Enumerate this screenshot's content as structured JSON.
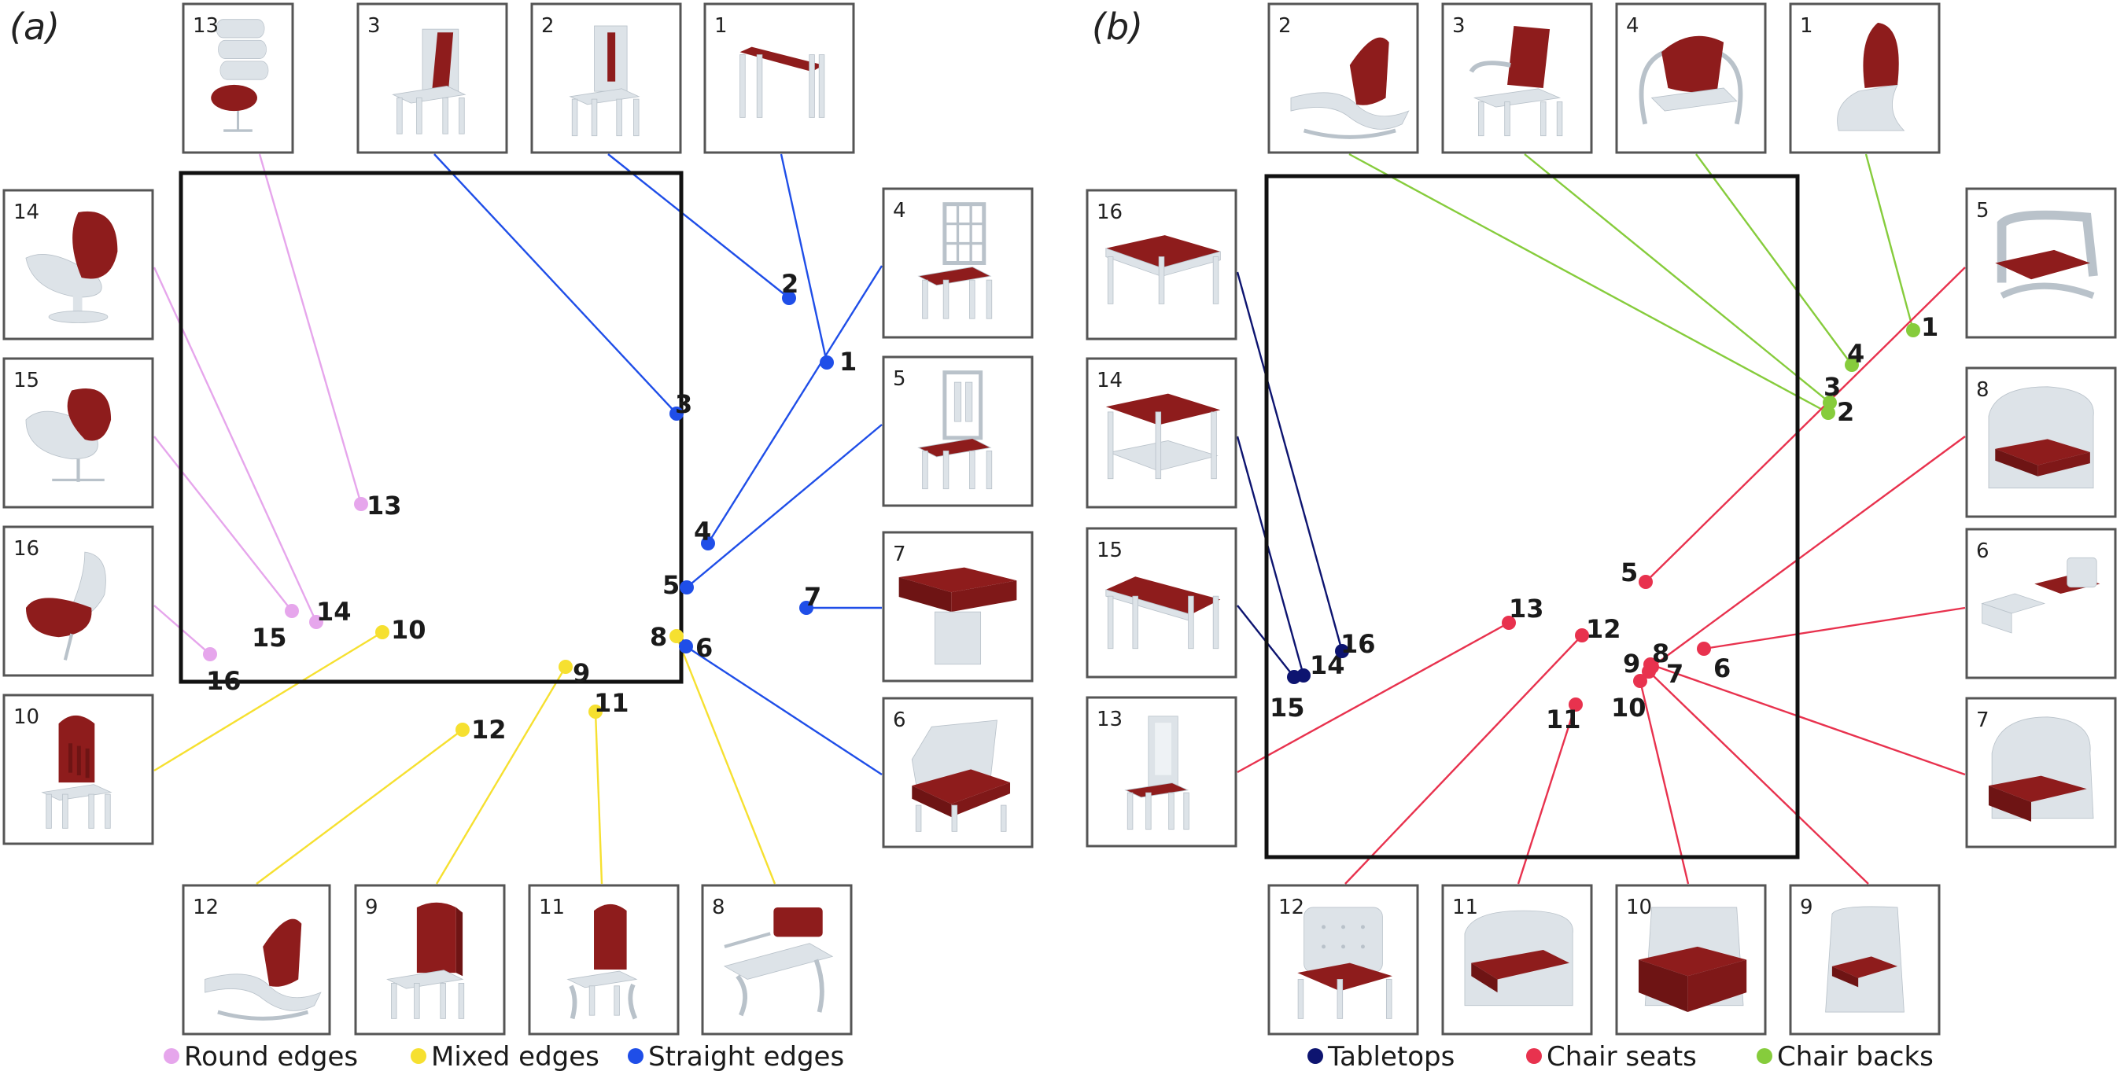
{
  "panels": [
    {
      "id": "a",
      "label": "(a)",
      "legend": [
        {
          "key": "round",
          "text": "Round edges",
          "color": "#e6a6ec"
        },
        {
          "key": "mixed",
          "text": "Mixed edges",
          "color": "#f6e030"
        },
        {
          "key": "straight",
          "text": "Straight edges",
          "color": "#1f4ee8"
        }
      ],
      "thumbnails": [
        {
          "num": "13",
          "shape": "lounge",
          "group": "round"
        },
        {
          "num": "3",
          "shape": "chair-back-panel",
          "group": "straight"
        },
        {
          "num": "2",
          "shape": "chair-back-slat",
          "group": "straight"
        },
        {
          "num": "1",
          "shape": "console-table",
          "group": "straight"
        },
        {
          "num": "14",
          "shape": "egg-chair",
          "group": "round"
        },
        {
          "num": "15",
          "shape": "swan-chair",
          "group": "round"
        },
        {
          "num": "16",
          "shape": "curved-chair",
          "group": "round"
        },
        {
          "num": "10",
          "shape": "tall-back-chair",
          "group": "mixed"
        },
        {
          "num": "4",
          "shape": "lattice-chair",
          "group": "straight"
        },
        {
          "num": "5",
          "shape": "ladder-chair",
          "group": "straight"
        },
        {
          "num": "7",
          "shape": "pedestal-table",
          "group": "straight"
        },
        {
          "num": "6",
          "shape": "armchair",
          "group": "straight"
        },
        {
          "num": "12",
          "shape": "chaise",
          "group": "mixed"
        },
        {
          "num": "9",
          "shape": "solid-back-chair",
          "group": "mixed"
        },
        {
          "num": "11",
          "shape": "carved-chair",
          "group": "mixed"
        },
        {
          "num": "8",
          "shape": "bench-chair",
          "group": "mixed"
        }
      ],
      "points": [
        {
          "num": "1",
          "group": "straight"
        },
        {
          "num": "2",
          "group": "straight"
        },
        {
          "num": "3",
          "group": "straight"
        },
        {
          "num": "4",
          "group": "straight"
        },
        {
          "num": "5",
          "group": "straight"
        },
        {
          "num": "6",
          "group": "straight"
        },
        {
          "num": "7",
          "group": "straight"
        },
        {
          "num": "8",
          "group": "mixed"
        },
        {
          "num": "9",
          "group": "mixed"
        },
        {
          "num": "10",
          "group": "mixed"
        },
        {
          "num": "11",
          "group": "mixed"
        },
        {
          "num": "12",
          "group": "mixed"
        },
        {
          "num": "13",
          "group": "round"
        },
        {
          "num": "14",
          "group": "round"
        },
        {
          "num": "15",
          "group": "round"
        },
        {
          "num": "16",
          "group": "round"
        }
      ]
    },
    {
      "id": "b",
      "label": "(b)",
      "legend": [
        {
          "key": "tabletop",
          "text": "Tabletops",
          "color": "#0d1470"
        },
        {
          "key": "seat",
          "text": "Chair seats",
          "color": "#e8324e"
        },
        {
          "key": "back",
          "text": "Chair backs",
          "color": "#86cc3c"
        }
      ],
      "thumbnails": [
        {
          "num": "2",
          "shape": "chaise",
          "group": "back"
        },
        {
          "num": "3",
          "shape": "arm-chair-back",
          "group": "back"
        },
        {
          "num": "4",
          "shape": "hoop-chair",
          "group": "back"
        },
        {
          "num": "1",
          "shape": "s-chair",
          "group": "back"
        },
        {
          "num": "16",
          "shape": "square-table",
          "group": "tabletop"
        },
        {
          "num": "14",
          "shape": "shelf-table",
          "group": "tabletop"
        },
        {
          "num": "15",
          "shape": "long-table",
          "group": "tabletop"
        },
        {
          "num": "13",
          "shape": "side-chair",
          "group": "seat"
        },
        {
          "num": "5",
          "shape": "loop-chair",
          "group": "seat"
        },
        {
          "num": "8",
          "shape": "club-chair",
          "group": "seat"
        },
        {
          "num": "6",
          "shape": "low-seat",
          "group": "seat"
        },
        {
          "num": "7",
          "shape": "wing-chair",
          "group": "seat"
        },
        {
          "num": "12",
          "shape": "tufted-chair",
          "group": "seat"
        },
        {
          "num": "11",
          "shape": "sofa",
          "group": "seat"
        },
        {
          "num": "10",
          "shape": "block-chair",
          "group": "seat"
        },
        {
          "num": "9",
          "shape": "box-chair",
          "group": "seat"
        }
      ],
      "points": [
        {
          "num": "1",
          "group": "back"
        },
        {
          "num": "2",
          "group": "back"
        },
        {
          "num": "3",
          "group": "back"
        },
        {
          "num": "4",
          "group": "back"
        },
        {
          "num": "5",
          "group": "seat"
        },
        {
          "num": "6",
          "group": "seat"
        },
        {
          "num": "7",
          "group": "seat"
        },
        {
          "num": "8",
          "group": "seat"
        },
        {
          "num": "9",
          "group": "seat"
        },
        {
          "num": "10",
          "group": "seat"
        },
        {
          "num": "11",
          "group": "seat"
        },
        {
          "num": "12",
          "group": "seat"
        },
        {
          "num": "13",
          "group": "seat"
        },
        {
          "num": "14",
          "group": "tabletop"
        },
        {
          "num": "15",
          "group": "tabletop"
        },
        {
          "num": "16",
          "group": "tabletop"
        }
      ]
    }
  ],
  "colors": {
    "frame": "#111111",
    "thumb_border": "#555555",
    "furniture": "#dde3e8",
    "highlight": "#8e1c1c"
  }
}
